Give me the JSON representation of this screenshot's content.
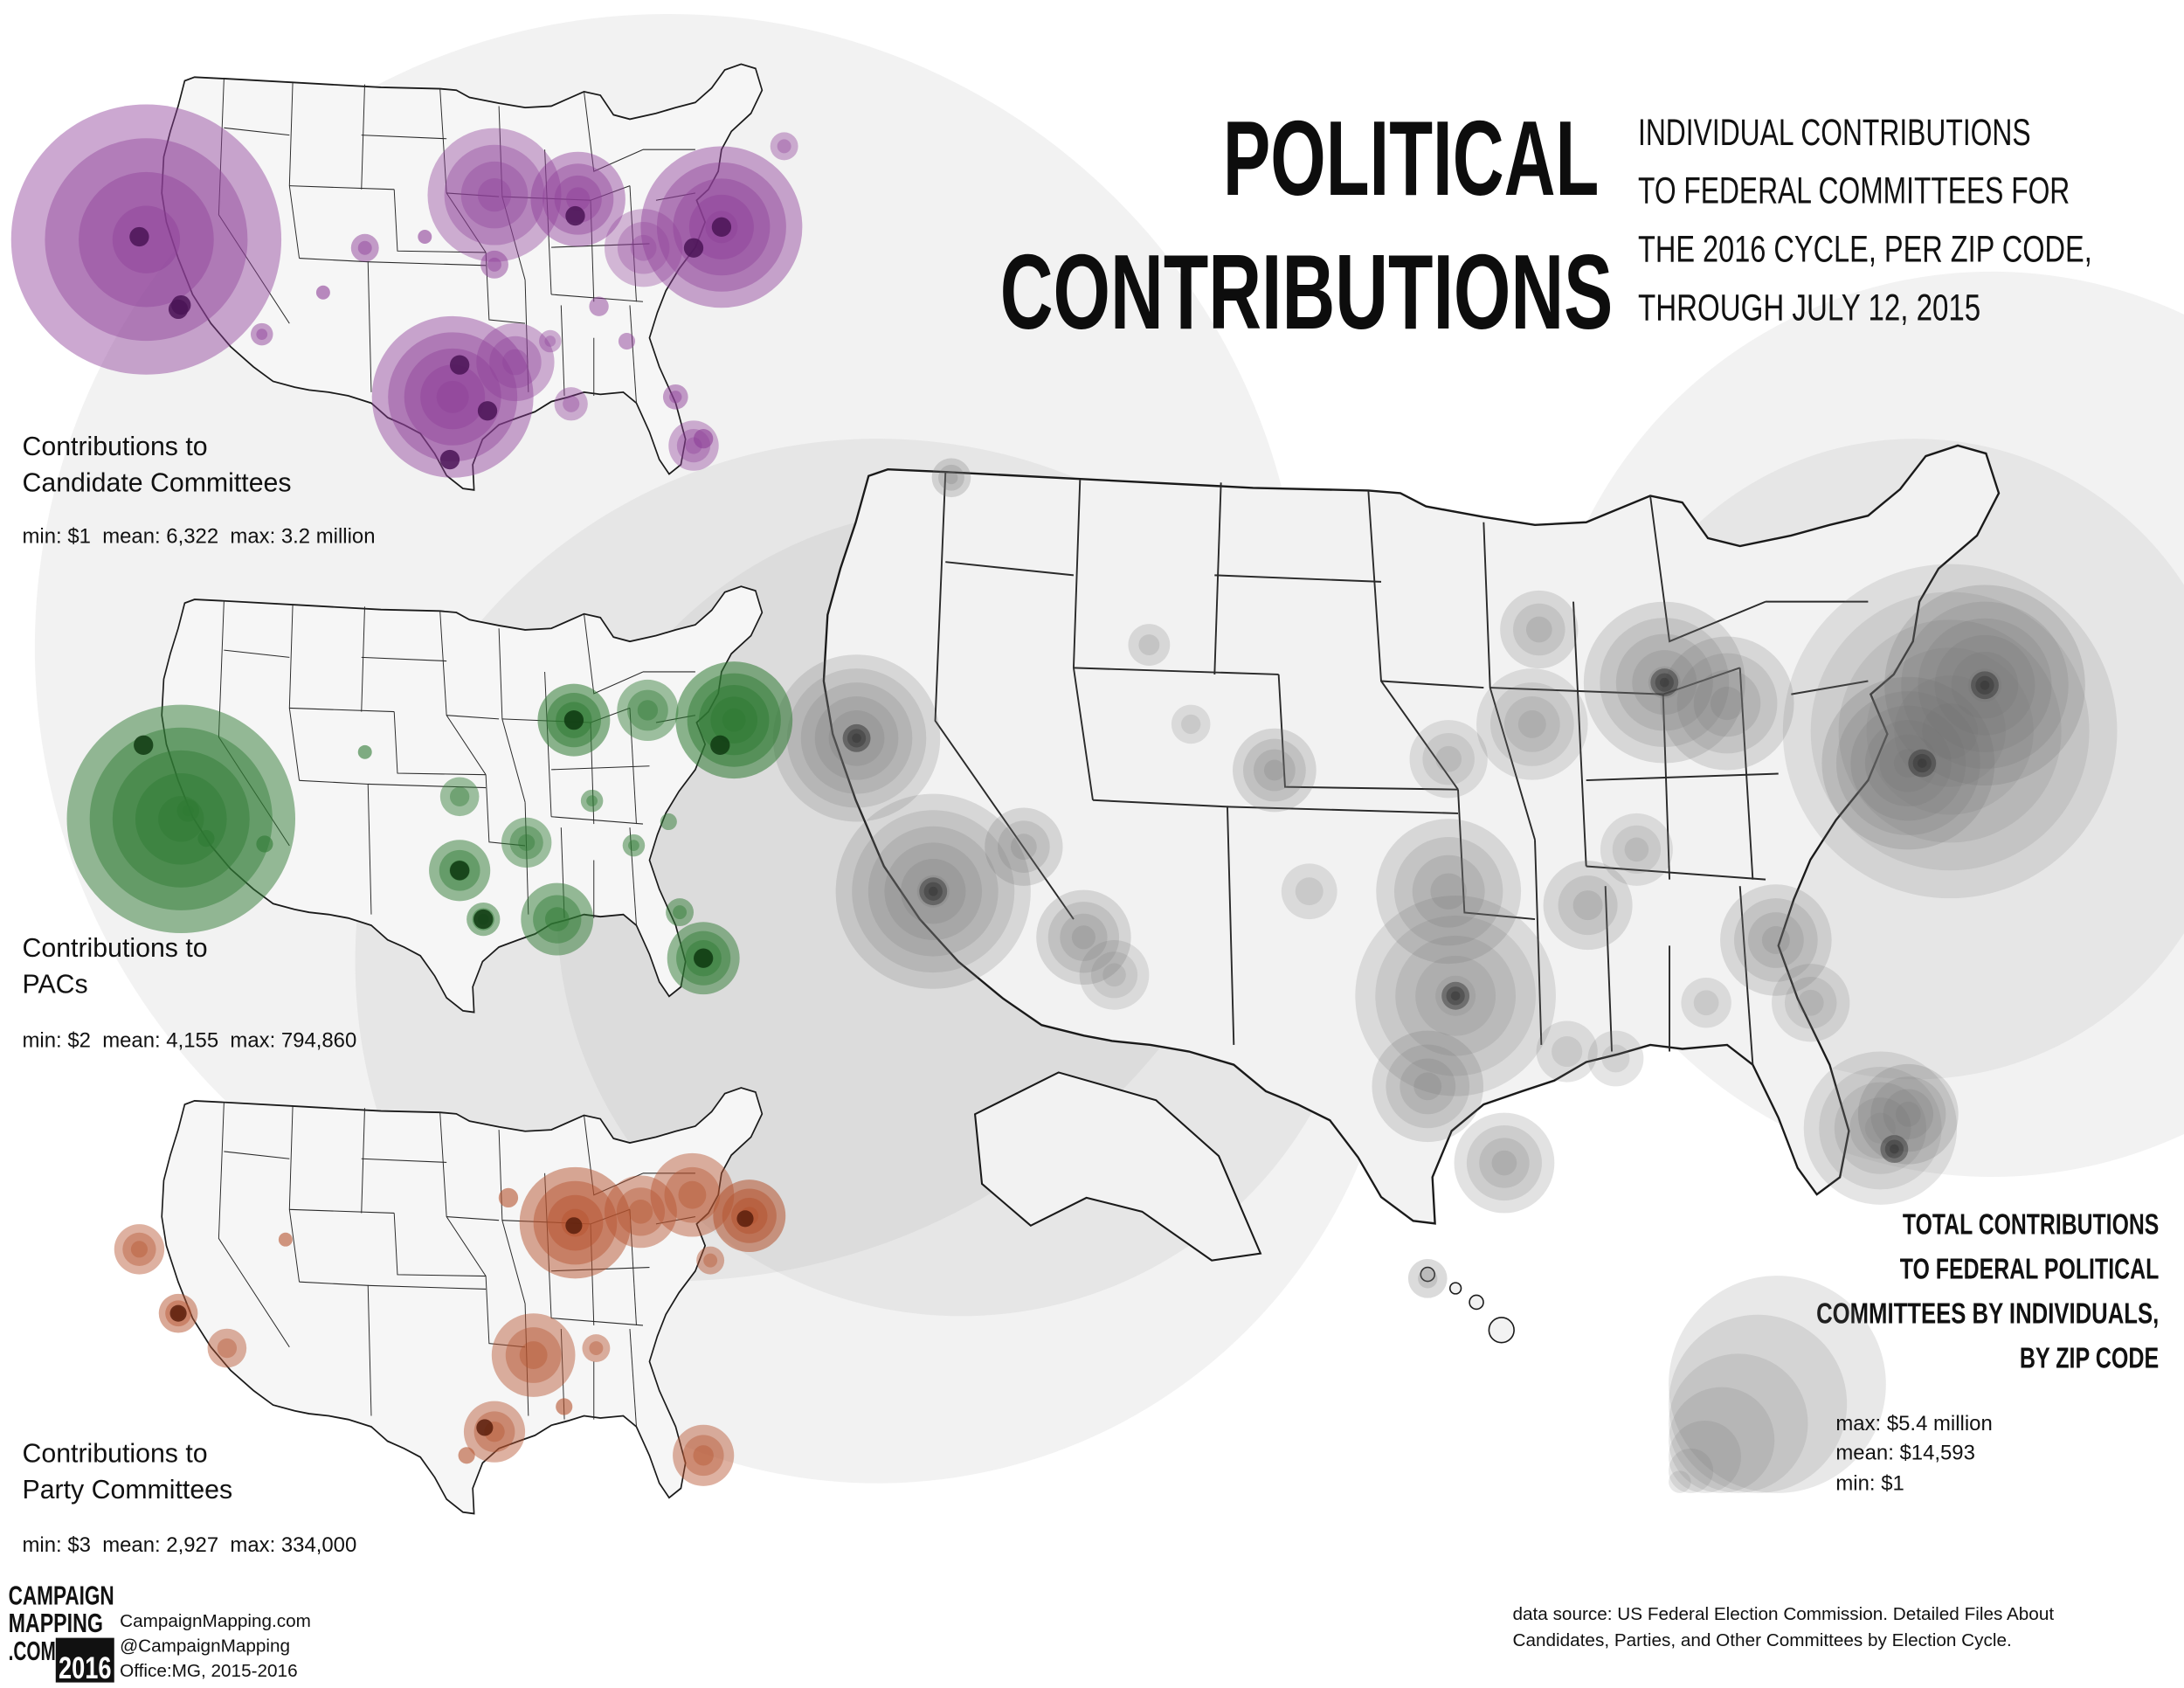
{
  "title": {
    "line1": "POLITICAL",
    "line2": "CONTRIBUTIONS",
    "subtitle": [
      "INDIVIDUAL CONTRIBUTIONS",
      "TO FEDERAL COMMITTEES FOR",
      "THE 2016 CYCLE, PER ZIP CODE,",
      "THROUGH JULY 12, 2015"
    ]
  },
  "panels": [
    {
      "id": "candidate",
      "label": [
        "Contributions to",
        "Candidate Committees"
      ],
      "stats": "min: $1  mean: 6,322  max: 3.2 million",
      "color": "#8e3f98",
      "core": "#4a1456"
    },
    {
      "id": "pac",
      "label": [
        "Contributions to",
        "PACs"
      ],
      "stats": "min: $2  mean: 4,155  max: 794,860",
      "color": "#2f7a33",
      "core": "#0f3a12"
    },
    {
      "id": "party",
      "label": [
        "Contributions to",
        "Party Committees"
      ],
      "stats": "min: $3  mean: 2,927  max: 334,000",
      "color": "#b5532f",
      "core": "#5a1e0c"
    }
  ],
  "legend": {
    "title": [
      "TOTAL CONTRIBUTIONS",
      "TO FEDERAL POLITICAL",
      "COMMITTEES BY INDIVIDUALS,",
      "BY ZIP CODE"
    ],
    "max": "max: $5.4 million",
    "mean": "mean: $14,593",
    "min": "min: $1",
    "color": "#6e6e6e"
  },
  "source": [
    "data source: US Federal Election Commission. Detailed Files About",
    "Candidates, Parties, and Other Committees by Election Cycle."
  ],
  "credits": {
    "logo_lines": [
      "CAMPAIGN",
      "MAPPING",
      ".COM",
      "2016"
    ],
    "lines": [
      "CampaignMapping.com",
      "@CampaignMapping",
      "Office:MG, 2015-2016"
    ]
  }
}
